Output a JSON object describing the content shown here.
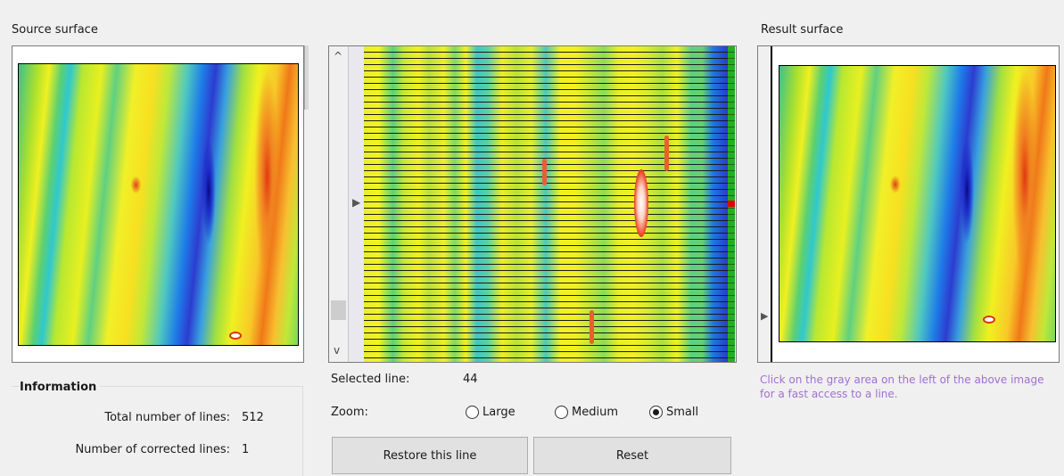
{
  "source": {
    "title": "Source surface"
  },
  "result": {
    "title": "Result surface",
    "hint": "Click on the gray area on the left of the above image for a fast access to a line."
  },
  "editor": {
    "scroll_up": "^",
    "scroll_down": "v",
    "selected_marker": "▶"
  },
  "selection": {
    "label": "Selected line:",
    "value": "44"
  },
  "zoom": {
    "label": "Zoom:",
    "options": [
      "Large",
      "Medium",
      "Small"
    ],
    "selected": "Small"
  },
  "buttons": {
    "restore": "Restore this line",
    "reset": "Reset"
  },
  "info": {
    "title": "Information",
    "total_label": "Total number of lines:",
    "total_value": "512",
    "corrected_label": "Number of corrected lines:",
    "corrected_value": "1"
  },
  "colors": {
    "hint": "#a070d0",
    "selected_row": "#e00000",
    "ok_row": "#22b022"
  }
}
